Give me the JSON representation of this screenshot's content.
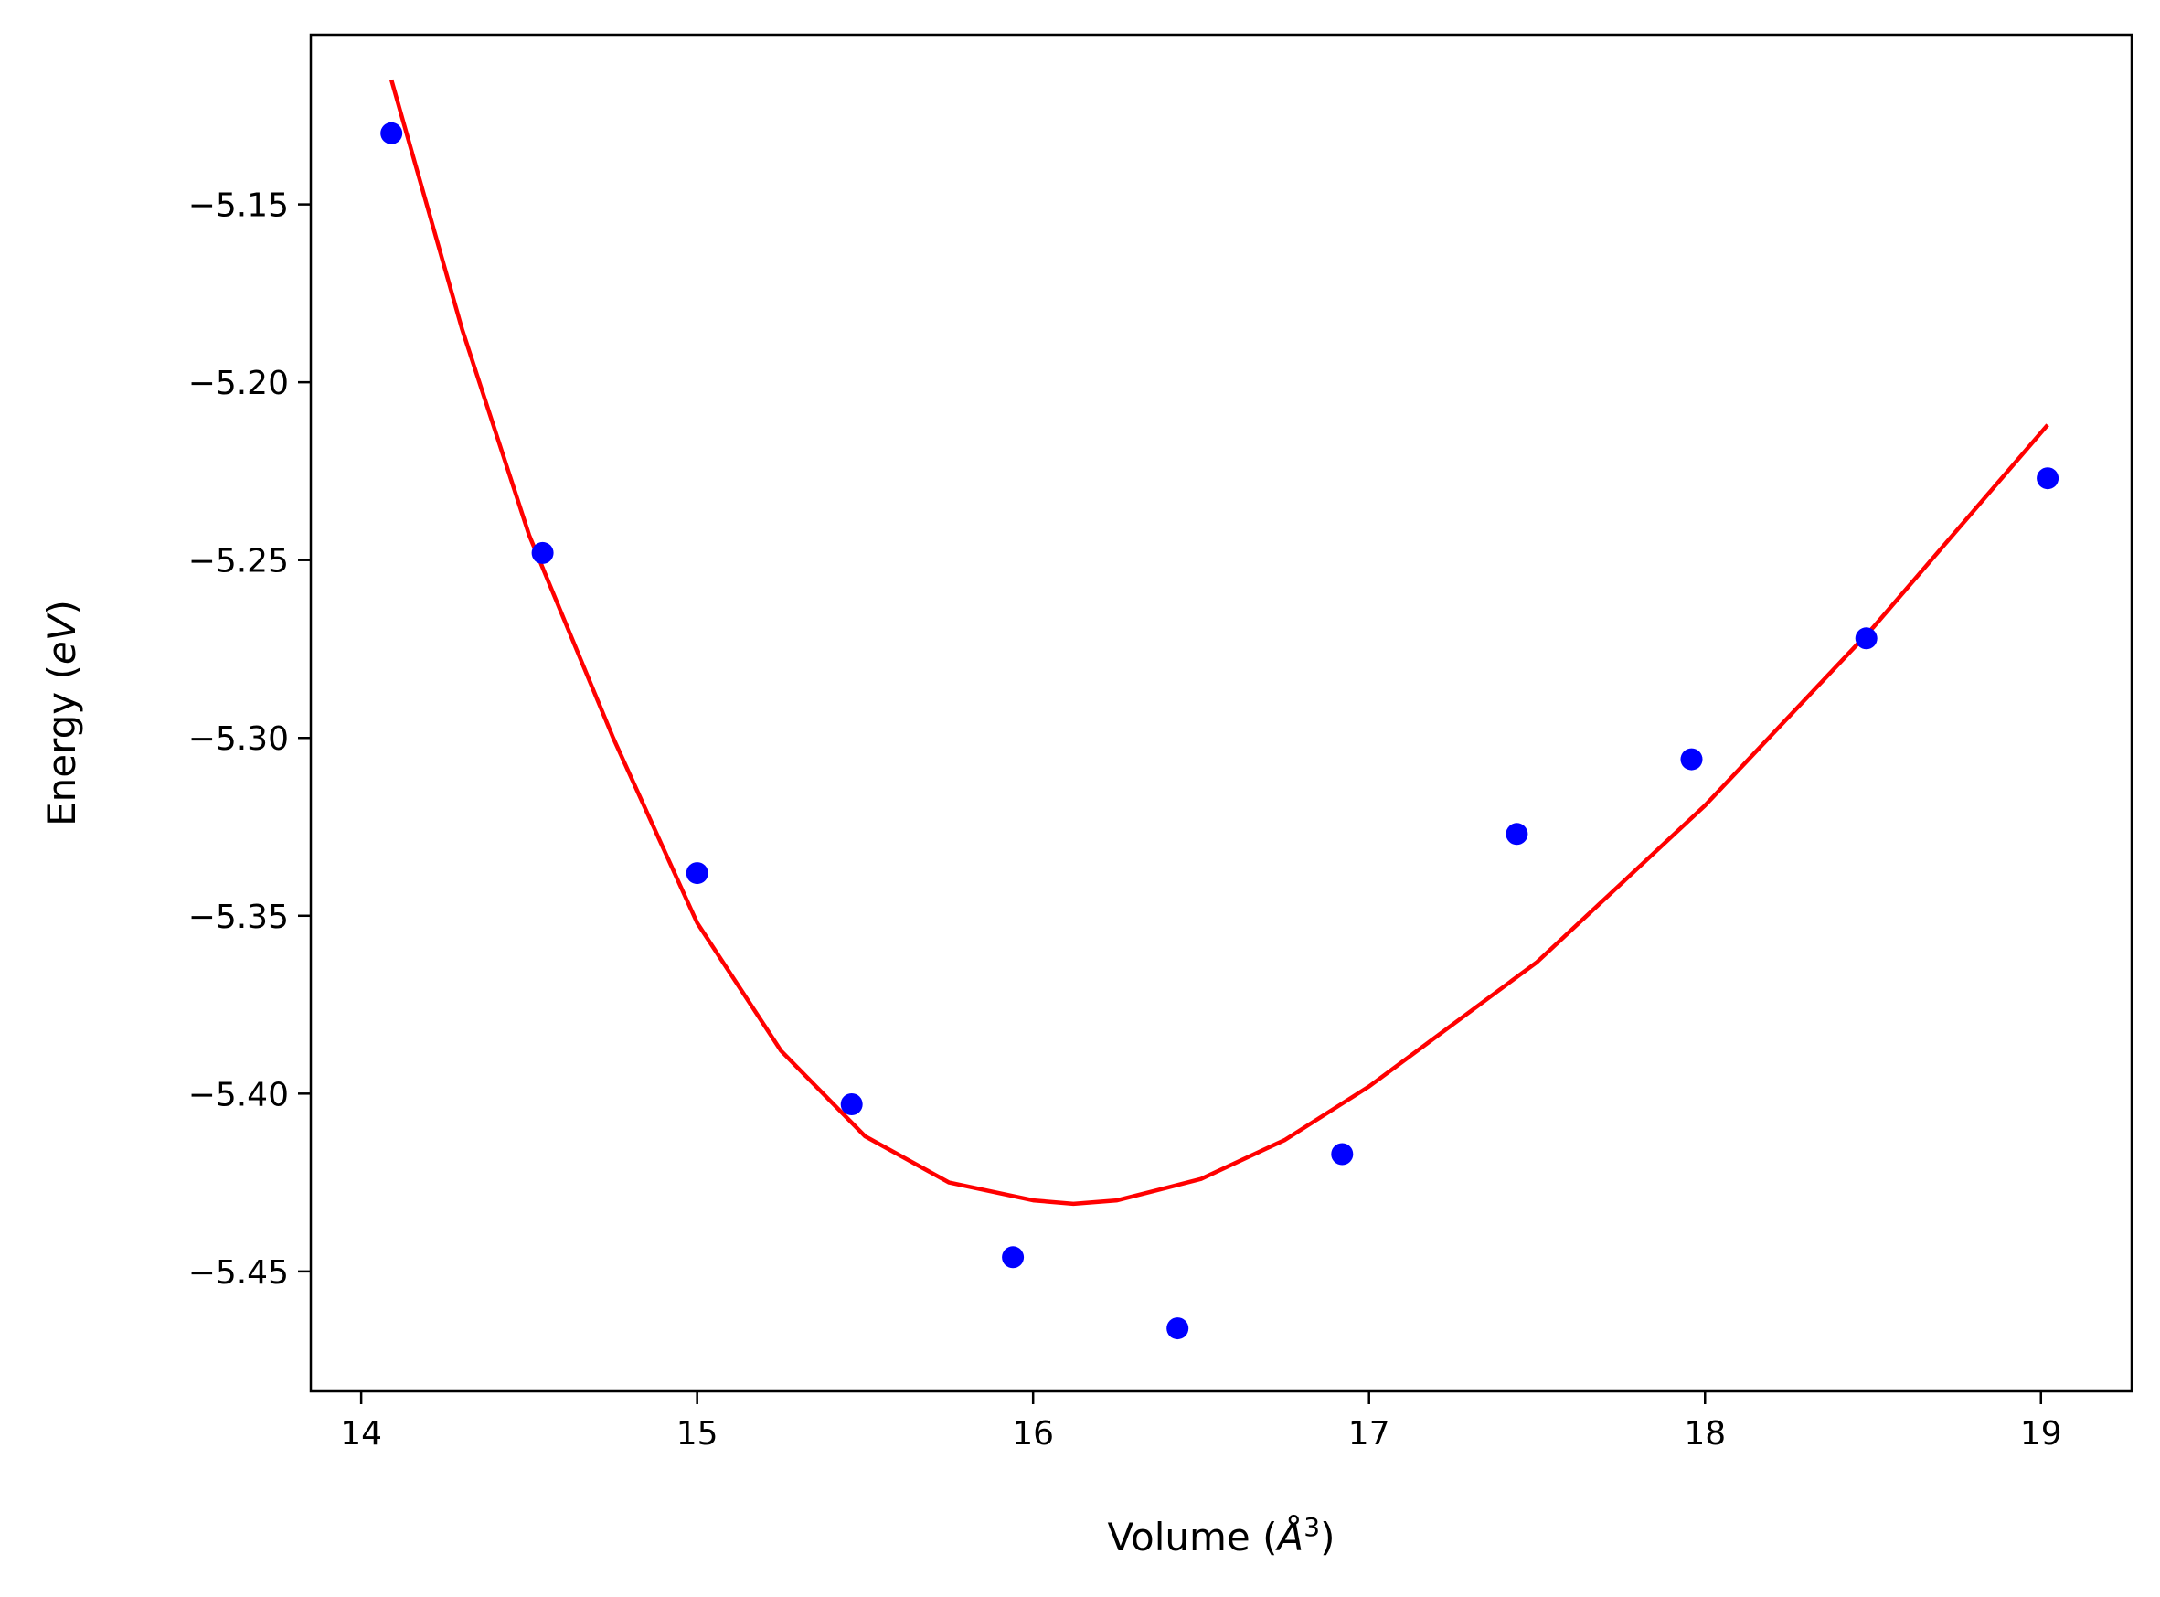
{
  "chart_data": {
    "type": "scatter",
    "title": "",
    "xlabel_parts": {
      "prefix": "Volume (",
      "unit": "Å",
      "sup": "3",
      "suffix": ")"
    },
    "ylabel_parts": {
      "prefix": "Energy (",
      "unit": "eV",
      "suffix": ")"
    },
    "xlim": [
      13.85,
      19.27
    ],
    "ylim": [
      -5.4837,
      -5.1023
    ],
    "xticks": [
      14,
      15,
      16,
      17,
      18,
      19
    ],
    "xtick_labels": [
      "14",
      "15",
      "16",
      "17",
      "18",
      "19"
    ],
    "yticks": [
      -5.15,
      -5.2,
      -5.25,
      -5.3,
      -5.35,
      -5.4,
      -5.45
    ],
    "ytick_labels": [
      "−5.15",
      "−5.20",
      "−5.25",
      "−5.30",
      "−5.35",
      "−5.40",
      "−5.45"
    ],
    "grid": false,
    "series": [
      {
        "type": "scatter",
        "color": "#0000ff",
        "x": [
          14.09,
          14.54,
          15.0,
          15.46,
          15.94,
          16.43,
          16.92,
          17.44,
          17.96,
          18.48,
          19.02
        ],
        "y": [
          -5.13,
          -5.248,
          -5.338,
          -5.403,
          -5.446,
          -5.466,
          -5.417,
          -5.327,
          -5.306,
          -5.272,
          -5.227
        ]
      },
      {
        "type": "line",
        "color": "#ff0000",
        "x": [
          14.09,
          14.3,
          14.5,
          14.75,
          15.0,
          15.25,
          15.5,
          15.75,
          16.0,
          16.12,
          16.25,
          16.5,
          16.75,
          17.0,
          17.5,
          18.0,
          18.5,
          19.02
        ],
        "y": [
          -5.115,
          -5.185,
          -5.243,
          -5.3,
          -5.352,
          -5.388,
          -5.412,
          -5.425,
          -5.43,
          -5.431,
          -5.43,
          -5.424,
          -5.413,
          -5.398,
          -5.363,
          -5.319,
          -5.269,
          -5.212
        ]
      }
    ]
  }
}
